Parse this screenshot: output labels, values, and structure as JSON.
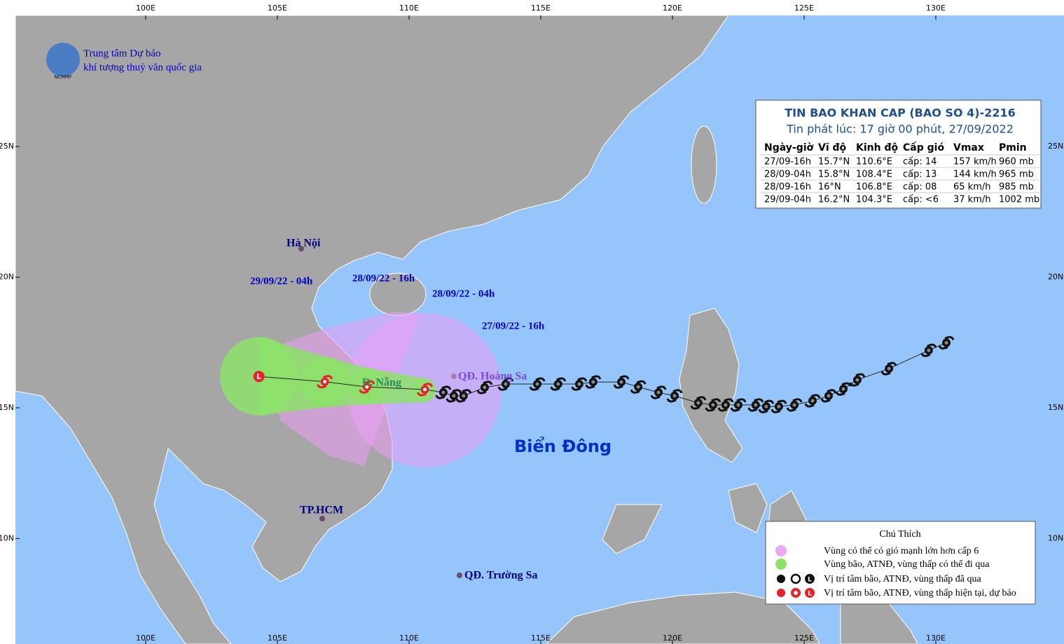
{
  "header": {
    "org_line1": "Trung tâm Dự báo",
    "org_line2": "khí tượng thuỷ văn quốc gia",
    "logo_text": "NCHMF"
  },
  "axes": {
    "lon_labels": [
      "100E",
      "105E",
      "110E",
      "115E",
      "120E",
      "125E",
      "130E"
    ],
    "lat_labels": [
      "25N",
      "20N",
      "15N",
      "10N"
    ]
  },
  "bulletin": {
    "title": "TIN BAO KHAN CAP  (BAO SO 4)-2216",
    "issued": "Tin phát lúc: 17 giờ 00 phút, 27/09/2022",
    "headers": [
      "Ngày-giờ",
      "Vĩ độ",
      "Kinh độ",
      "Cấp gió",
      "Vmax",
      "Pmin"
    ],
    "rows": [
      [
        "27/09-16h",
        "15.7°N",
        "110.6°E",
        "cấp: 14",
        "157 km/h",
        "960 mb"
      ],
      [
        "28/09-04h",
        "15.8°N",
        "108.4°E",
        "cấp: 13",
        "144 km/h",
        "965 mb"
      ],
      [
        "28/09-16h",
        "16°N",
        "106.8°E",
        "cấp: 08",
        "65 km/h",
        "985 mb"
      ],
      [
        "29/09-04h",
        "16.2°N",
        "104.3°E",
        "cấp: <6",
        "37 km/h",
        "1002 mb"
      ]
    ]
  },
  "past_track": {
    "lon": [
      111.3,
      111.7,
      112.07,
      112.87,
      113.67,
      114.87,
      115.66,
      116.46,
      116.99,
      118.06,
      118.7,
      119.47,
      120.08,
      120.98,
      121.54,
      122.02,
      122.5,
      123.16,
      123.56,
      124.04,
      124.63,
      125.32,
      125.93,
      126.49,
      127.02,
      128.22,
      129.73,
      130.4
    ],
    "lat": [
      15.59,
      15.46,
      15.46,
      15.78,
      15.91,
      15.91,
      15.91,
      15.91,
      15.99,
      15.99,
      15.8,
      15.59,
      15.46,
      15.19,
      15.11,
      15.11,
      15.11,
      15.11,
      15.05,
      15.05,
      15.11,
      15.27,
      15.46,
      15.72,
      16.07,
      16.5,
      17.2,
      17.49
    ]
  },
  "forecast_labels": [
    "29/09/22 - 04h",
    "28/09/22 - 16h",
    "28/09/22 - 04h",
    "27/09/22 - 16h"
  ],
  "places": {
    "hanoi": "Hà Nội",
    "danang": "Đ. Nẵng",
    "hcm": "TP.HCM",
    "hoangsa": "QĐ. Hoàng Sa",
    "truongsa": "QĐ. Trường Sa",
    "sea": "Biển Đông"
  },
  "legend": {
    "title": "Chú Thích",
    "items": [
      "Vùng có thể có gió mạnh lớn hơn cấp 6",
      "Vùng bão, ATNĐ, vùng thấp có thể đi qua",
      "Vị trí tâm bão, ATNĐ, vùng thấp đã qua",
      "Vị trí tâm bão, ATNĐ, vùng thấp hiện tại, dự báo"
    ]
  }
}
